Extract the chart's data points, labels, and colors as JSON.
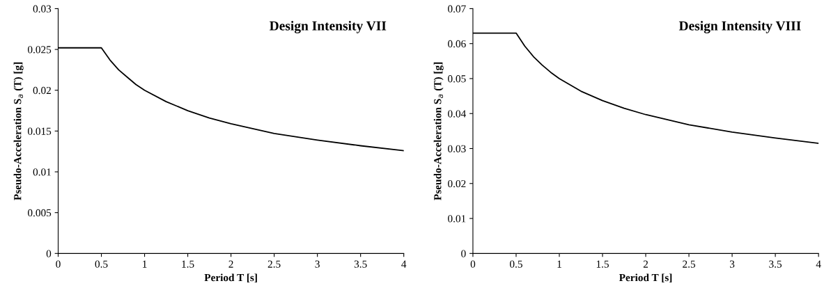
{
  "chart_data": [
    {
      "type": "line",
      "title": "Design Intensity VII",
      "xlabel": "Period T [s]",
      "ylabel": "Pseudo-Acceleration S$_{a}$ (T) [g]",
      "x": [
        0,
        0.5,
        0.6,
        0.7,
        0.8,
        0.9,
        1,
        1.25,
        1.5,
        1.75,
        2,
        2.5,
        3,
        3.5,
        4
      ],
      "series": [
        {
          "color": "#000000",
          "values": [
            0.0252,
            0.0252,
            0.0237,
            0.0225,
            0.0216,
            0.0207,
            0.02,
            0.0186,
            0.0175,
            0.0166,
            0.0159,
            0.0147,
            0.0139,
            0.0132,
            0.0126
          ]
        }
      ],
      "xlim": [
        0,
        4
      ],
      "xticks": [
        0,
        0.5,
        1,
        1.5,
        2,
        2.5,
        3,
        3.5,
        4
      ],
      "ylim": [
        0,
        0.03
      ],
      "yticks": [
        0,
        0.005,
        0.01,
        0.015,
        0.02,
        0.025,
        0.03
      ],
      "grid": false,
      "legend": false,
      "marker": "none",
      "line_style": "solid"
    },
    {
      "type": "line",
      "title": "Design Intensity VIII",
      "xlabel": "Period T [s]",
      "ylabel": "Pseudo-Acceleration S$_{a}$ (T) [g]",
      "x": [
        0,
        0.5,
        0.6,
        0.7,
        0.8,
        0.9,
        1,
        1.25,
        1.5,
        1.75,
        2,
        2.5,
        3,
        3.5,
        4
      ],
      "series": [
        {
          "color": "#000000",
          "values": [
            0.063,
            0.063,
            0.0593,
            0.0563,
            0.0539,
            0.0518,
            0.05,
            0.0464,
            0.0437,
            0.0415,
            0.0397,
            0.0368,
            0.0347,
            0.033,
            0.0315
          ]
        }
      ],
      "xlim": [
        0,
        4
      ],
      "xticks": [
        0,
        0.5,
        1,
        1.5,
        2,
        2.5,
        3,
        3.5,
        4
      ],
      "ylim": [
        0,
        0.07
      ],
      "yticks": [
        0,
        0.01,
        0.02,
        0.03,
        0.04,
        0.05,
        0.06,
        0.07
      ],
      "grid": false,
      "legend": false,
      "marker": "none",
      "line_style": "solid"
    }
  ]
}
